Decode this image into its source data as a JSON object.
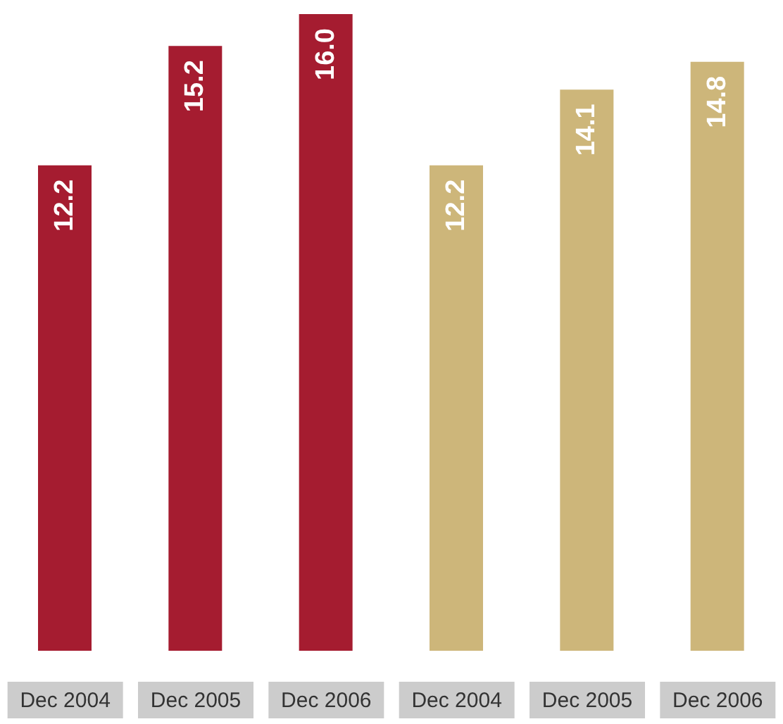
{
  "chart_data": [
    {
      "type": "bar",
      "categories": [
        "Dec 2004",
        "Dec 2005",
        "Dec 2006"
      ],
      "values": [
        12.2,
        15.2,
        16.0
      ],
      "value_labels": [
        "12.2",
        "15.2",
        "16.0"
      ],
      "color": "#a51c30"
    },
    {
      "type": "bar",
      "categories": [
        "Dec 2004",
        "Dec 2005",
        "Dec 2006"
      ],
      "values": [
        12.2,
        14.1,
        14.8
      ],
      "value_labels": [
        "12.2",
        "14.1",
        "14.8"
      ],
      "color": "#cdb67a"
    }
  ]
}
